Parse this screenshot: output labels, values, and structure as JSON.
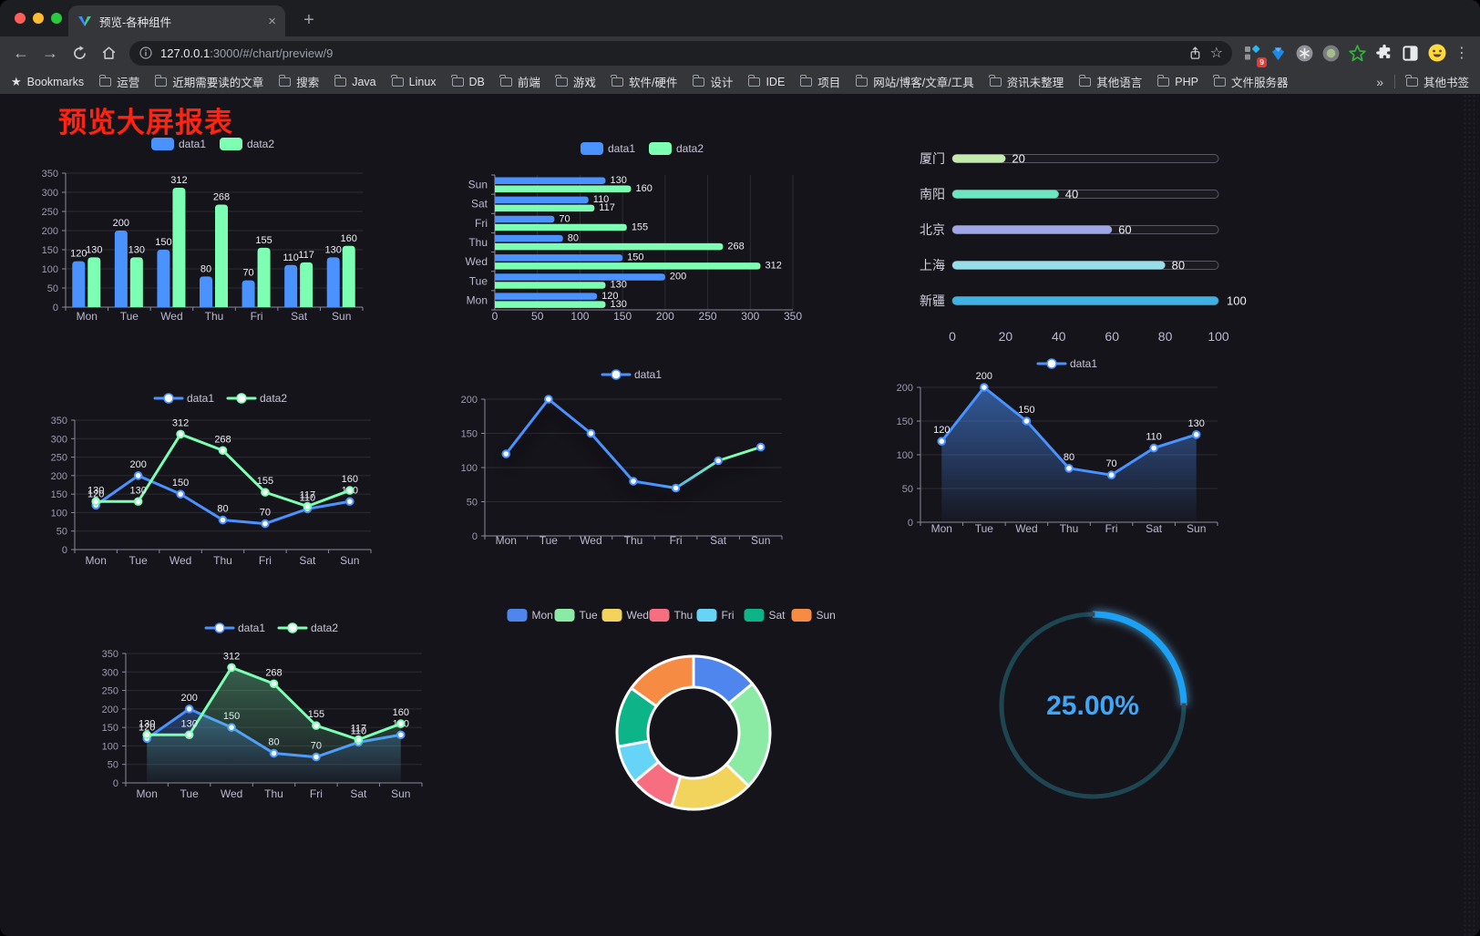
{
  "browser": {
    "tab": {
      "title": "预览-各种组件"
    },
    "url_host": "127.0.0.1",
    "url_rest": ":3000/#/chart/preview/9",
    "bookmarks_label": "Bookmarks",
    "bookmarks": [
      "运营",
      "近期需要读的文章",
      "搜索",
      "Java",
      "Linux",
      "DB",
      "前端",
      "游戏",
      "软件/硬件",
      "设计",
      "IDE",
      "项目",
      "网站/博客/文章/工具",
      "资讯未整理",
      "其他语言",
      "PHP",
      "文件服务器"
    ],
    "other_bookmarks": "其他书签",
    "extension_badge": "9",
    "icons": {
      "back": "←",
      "forward": "→",
      "home": "⌂",
      "star": "☆",
      "bookmark_star": "★",
      "kebab": "⋮",
      "new_tab": "+",
      "tab_close": "×",
      "overflow": "»"
    }
  },
  "page": {
    "title": "预览大屏报表",
    "title_color": "#ff2412",
    "background": "#16141b"
  },
  "chart_data": [
    {
      "id": "bar-vertical",
      "type": "bar",
      "categories": [
        "Mon",
        "Tue",
        "Wed",
        "Thu",
        "Fri",
        "Sat",
        "Sun"
      ],
      "series": [
        {
          "name": "data1",
          "color": "#4992ff",
          "values": [
            120,
            200,
            150,
            80,
            70,
            110,
            130
          ]
        },
        {
          "name": "data2",
          "color": "#7cffb2",
          "values": [
            130,
            130,
            312,
            268,
            155,
            117,
            160
          ]
        }
      ],
      "ylim": [
        0,
        350
      ],
      "ytick": 50,
      "grid": true,
      "legend_position": "top"
    },
    {
      "id": "bar-horizontal",
      "type": "hbar",
      "categories": [
        "Mon",
        "Tue",
        "Wed",
        "Thu",
        "Fri",
        "Sat",
        "Sun"
      ],
      "series": [
        {
          "name": "data1",
          "color": "#4992ff",
          "values": [
            120,
            200,
            150,
            80,
            70,
            110,
            130
          ]
        },
        {
          "name": "data2",
          "color": "#7cffb2",
          "values": [
            130,
            130,
            312,
            268,
            155,
            117,
            160
          ]
        }
      ],
      "xlim": [
        0,
        350
      ],
      "xtick": 50,
      "grid": true,
      "legend_position": "top"
    },
    {
      "id": "progress",
      "type": "progress-bars",
      "max": 100,
      "items": [
        {
          "label": "厦门",
          "value": 20,
          "color": "#c4ebad"
        },
        {
          "label": "南阳",
          "value": 40,
          "color": "#6be6c1"
        },
        {
          "label": "北京",
          "value": 60,
          "color": "#a0a7e6"
        },
        {
          "label": "上海",
          "value": 80,
          "color": "#96dee8"
        },
        {
          "label": "新疆",
          "value": 100,
          "color": "#3fb1e3"
        }
      ],
      "xticks": [
        0,
        20,
        40,
        60,
        80,
        100
      ]
    },
    {
      "id": "line-two",
      "type": "line",
      "categories": [
        "Mon",
        "Tue",
        "Wed",
        "Thu",
        "Fri",
        "Sat",
        "Sun"
      ],
      "series": [
        {
          "name": "data1",
          "color": "#4992ff",
          "values": [
            120,
            200,
            150,
            80,
            70,
            110,
            130
          ]
        },
        {
          "name": "data2",
          "color": "#7cffb2",
          "values": [
            130,
            130,
            312,
            268,
            155,
            117,
            160
          ]
        }
      ],
      "ylim": [
        0,
        350
      ],
      "ytick": 50,
      "show_labels": true,
      "grid": true
    },
    {
      "id": "line-gradient",
      "type": "line",
      "categories": [
        "Mon",
        "Tue",
        "Wed",
        "Thu",
        "Fri",
        "Sat",
        "Sun"
      ],
      "series": [
        {
          "name": "data1",
          "color": "#4992ff",
          "gradient": [
            "#4992ff",
            "#7cffb2"
          ],
          "shadow": true,
          "values": [
            120,
            200,
            150,
            80,
            70,
            110,
            130
          ]
        }
      ],
      "ylim": [
        0,
        200
      ],
      "ytick": 50,
      "show_labels": false,
      "grid": true
    },
    {
      "id": "line-area",
      "type": "line",
      "categories": [
        "Mon",
        "Tue",
        "Wed",
        "Thu",
        "Fri",
        "Sat",
        "Sun"
      ],
      "series": [
        {
          "name": "data1",
          "color": "#4992ff",
          "area": true,
          "area_opacity": 0.55,
          "values": [
            120,
            200,
            150,
            80,
            70,
            110,
            130
          ]
        }
      ],
      "ylim": [
        0,
        200
      ],
      "ytick": 50,
      "show_labels": true,
      "grid": true
    },
    {
      "id": "area-two",
      "type": "line",
      "categories": [
        "Mon",
        "Tue",
        "Wed",
        "Thu",
        "Fri",
        "Sat",
        "Sun"
      ],
      "series": [
        {
          "name": "data1",
          "color": "#4992ff",
          "area": true,
          "area_opacity": 0.35,
          "values": [
            120,
            200,
            150,
            80,
            70,
            110,
            130
          ]
        },
        {
          "name": "data2",
          "color": "#7cffb2",
          "area": true,
          "area_opacity": 0.32,
          "values": [
            130,
            130,
            312,
            268,
            155,
            117,
            160
          ]
        }
      ],
      "ylim": [
        0,
        350
      ],
      "ytick": 50,
      "show_labels": true,
      "grid": true
    },
    {
      "id": "pie",
      "type": "pie",
      "categories": [
        "Mon",
        "Tue",
        "Wed",
        "Thu",
        "Fri",
        "Sat",
        "Sun"
      ],
      "values": [
        120,
        200,
        150,
        80,
        70,
        110,
        130
      ],
      "colors": [
        "#4e86ee",
        "#8beba5",
        "#f2d35b",
        "#f76e80",
        "#66d4f6",
        "#0db487",
        "#f68c43"
      ],
      "border_color": "#ffffff",
      "donut": true
    },
    {
      "id": "gauge",
      "type": "gauge",
      "value": 25,
      "max": 100,
      "label": "25.00%",
      "color": "#1ba2f7",
      "track_color": "#1d4652",
      "text_color": "#3fa7f7"
    }
  ]
}
